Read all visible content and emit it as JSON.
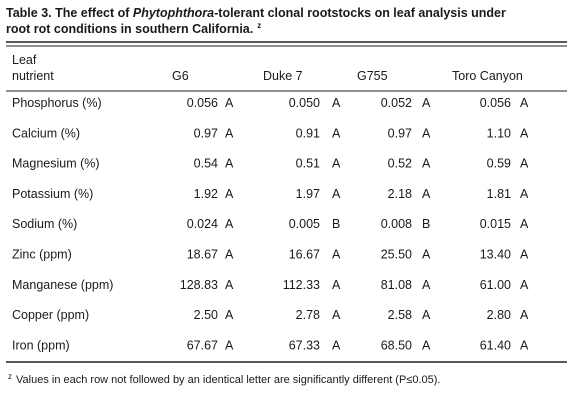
{
  "title": {
    "lead": "Table 3.  The effect of ",
    "italic": "Phytophthora",
    "line1_rest": "-tolerant clonal rootstocks on leaf analysis under",
    "line2": "root rot conditions in southern California.",
    "mark": "z"
  },
  "table": {
    "header": {
      "label_line1": "Leaf",
      "label_line2": "nutrient",
      "columns": [
        "G6",
        "Duke 7",
        "G755",
        "Toro Canyon"
      ]
    },
    "rows": [
      {
        "label": "Phosphorus (%)",
        "cells": [
          {
            "value": "0.056",
            "letter": "A"
          },
          {
            "value": "0.050",
            "letter": "A"
          },
          {
            "value": "0.052",
            "letter": "A"
          },
          {
            "value": "0.056",
            "letter": "A"
          }
        ]
      },
      {
        "label": "Calcium (%)",
        "cells": [
          {
            "value": "0.97",
            "letter": "A"
          },
          {
            "value": "0.91",
            "letter": "A"
          },
          {
            "value": "0.97",
            "letter": "A"
          },
          {
            "value": "1.10",
            "letter": "A"
          }
        ]
      },
      {
        "label": "Magnesium (%)",
        "cells": [
          {
            "value": "0.54",
            "letter": "A"
          },
          {
            "value": "0.51",
            "letter": "A"
          },
          {
            "value": "0.52",
            "letter": "A"
          },
          {
            "value": "0.59",
            "letter": "A"
          }
        ]
      },
      {
        "label": "Potassium (%)",
        "cells": [
          {
            "value": "1.92",
            "letter": "A"
          },
          {
            "value": "1.97",
            "letter": "A"
          },
          {
            "value": "2.18",
            "letter": "A"
          },
          {
            "value": "1.81",
            "letter": "A"
          }
        ]
      },
      {
        "label": "Sodium (%)",
        "cells": [
          {
            "value": "0.024",
            "letter": "A"
          },
          {
            "value": "0.005",
            "letter": "B"
          },
          {
            "value": "0.008",
            "letter": "B"
          },
          {
            "value": "0.015",
            "letter": "A"
          }
        ]
      },
      {
        "label": "Zinc (ppm)",
        "cells": [
          {
            "value": "18.67",
            "letter": "A"
          },
          {
            "value": "16.67",
            "letter": "A"
          },
          {
            "value": "25.50",
            "letter": "A"
          },
          {
            "value": "13.40",
            "letter": "A"
          }
        ]
      },
      {
        "label": "Manganese (ppm)",
        "cells": [
          {
            "value": "128.83",
            "letter": "A"
          },
          {
            "value": "112.33",
            "letter": "A"
          },
          {
            "value": "81.08",
            "letter": "A"
          },
          {
            "value": "61.00",
            "letter": "A"
          }
        ]
      },
      {
        "label": "Copper (ppm)",
        "cells": [
          {
            "value": "2.50",
            "letter": "A"
          },
          {
            "value": "2.78",
            "letter": "A"
          },
          {
            "value": "2.58",
            "letter": "A"
          },
          {
            "value": "2.80",
            "letter": "A"
          }
        ]
      },
      {
        "label": "Iron (ppm)",
        "cells": [
          {
            "value": "67.67",
            "letter": "A"
          },
          {
            "value": "67.33",
            "letter": "A"
          },
          {
            "value": "68.50",
            "letter": "A"
          },
          {
            "value": "61.40",
            "letter": "A"
          }
        ]
      }
    ]
  },
  "footnote": {
    "mark": "z",
    "text": "Values in each row not followed by an identical letter are significantly different (P≤0.05)."
  }
}
